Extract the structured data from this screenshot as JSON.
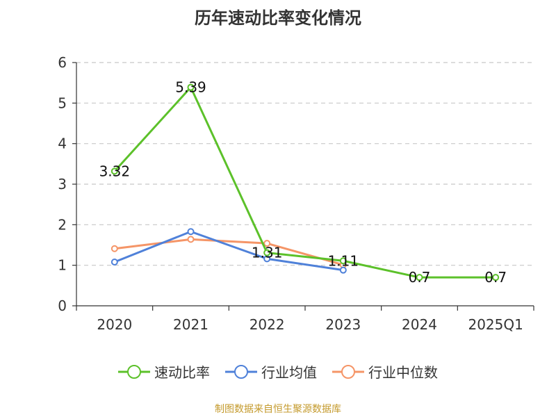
{
  "chart_data": {
    "type": "line",
    "title": "历年速动比率变化情况",
    "categories": [
      "2020",
      "2021",
      "2022",
      "2023",
      "2024",
      "2025Q1"
    ],
    "ylim": [
      0,
      6
    ],
    "yticks": [
      0,
      1,
      2,
      3,
      4,
      5,
      6
    ],
    "grid": true,
    "legend_position": "bottom",
    "series": [
      {
        "name": "速动比率",
        "color": "#5cc12a",
        "values": [
          3.32,
          5.39,
          1.31,
          1.11,
          0.7,
          0.7
        ],
        "labels": [
          "3.32",
          "5.39",
          "1.31",
          "1.11",
          "0.7",
          "0.7"
        ],
        "show_labels": true
      },
      {
        "name": "行业均值",
        "color": "#4f81d9",
        "values": [
          1.08,
          1.83,
          1.16,
          0.88,
          null,
          null
        ],
        "show_labels": false
      },
      {
        "name": "行业中位数",
        "color": "#f59567",
        "values": [
          1.41,
          1.64,
          1.54,
          1.01,
          null,
          null
        ],
        "show_labels": false
      }
    ]
  },
  "source": "制图数据来自恒生聚源数据库"
}
